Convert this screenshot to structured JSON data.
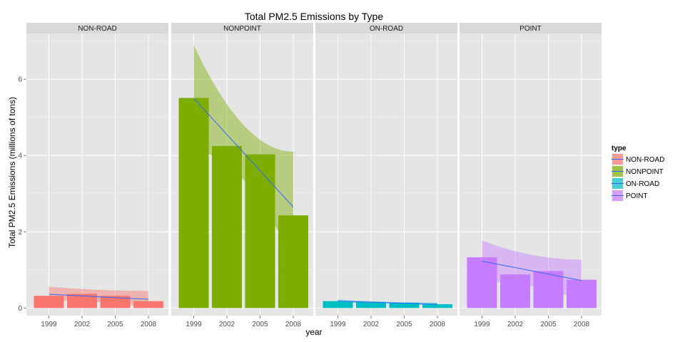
{
  "chart_data": {
    "type": "bar",
    "title": "Total PM2.5 Emissions by Type",
    "xlabel": "year",
    "ylabel": "Total PM2.5 Emissions (millions of tons)",
    "categories": [
      "1999",
      "2002",
      "2005",
      "2008"
    ],
    "ylim": [
      -0.2,
      7.2
    ],
    "yticks": [
      0,
      2,
      4,
      6
    ],
    "legend": {
      "title": "type",
      "position": "right"
    },
    "panels": [
      {
        "name": "NON-ROAD",
        "color": "#F8766D",
        "values": [
          0.32,
          0.37,
          0.32,
          0.18
        ],
        "trend": {
          "y_start": 0.36,
          "y_end": 0.23,
          "ci_upper_start": 0.56,
          "ci_upper_end": 0.45,
          "ci_lower_start": 0.2,
          "ci_lower_end": 0.02
        }
      },
      {
        "name": "NONPOINT",
        "color": "#7CAE00",
        "values": [
          5.51,
          4.25,
          4.03,
          2.43
        ],
        "trend": {
          "y_start": 5.5,
          "y_end": 2.65,
          "ci_upper_start": 6.9,
          "ci_upper_end": 4.1,
          "ci_lower_start": 4.1,
          "ci_lower_end": 1.2
        }
      },
      {
        "name": "ON-ROAD",
        "color": "#00BFC4",
        "values": [
          0.18,
          0.16,
          0.14,
          0.1
        ],
        "trend": {
          "y_start": 0.18,
          "y_end": 0.1,
          "ci_upper_start": 0.22,
          "ci_upper_end": 0.14,
          "ci_lower_start": 0.14,
          "ci_lower_end": 0.06
        }
      },
      {
        "name": "POINT",
        "color": "#C77CFF",
        "values": [
          1.33,
          0.88,
          0.97,
          0.74
        ],
        "trend": {
          "y_start": 1.23,
          "y_end": 0.72,
          "ci_upper_start": 1.77,
          "ci_upper_end": 1.27,
          "ci_lower_start": 0.7,
          "ci_lower_end": 0.2
        }
      }
    ],
    "trend_color": "#3366FF",
    "grid": true
  }
}
